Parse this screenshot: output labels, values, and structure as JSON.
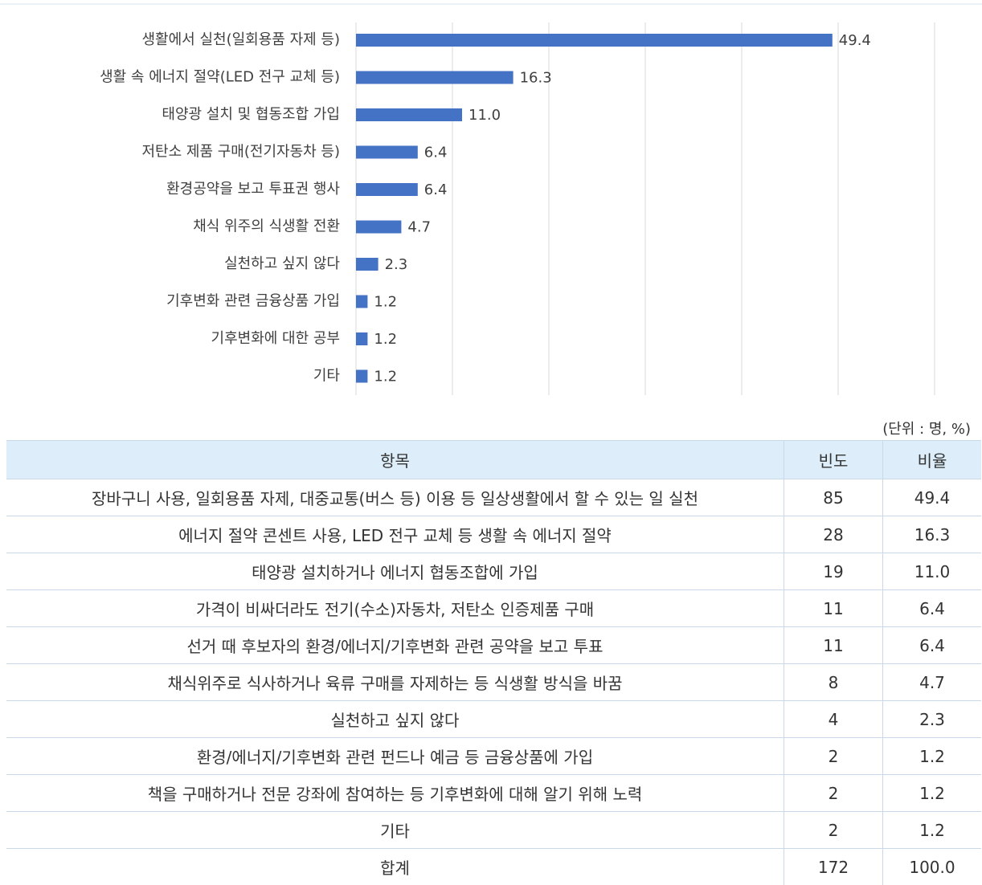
{
  "chart_data": {
    "type": "bar",
    "orientation": "horizontal",
    "categories": [
      "생활에서 실천(일회용품 자제 등)",
      "생활 속 에너지 절약(LED 전구 교체 등)",
      "태양광 설치 및 협동조합 가입",
      "저탄소 제품 구매(전기자동차 등)",
      "환경공약을 보고 투표권 행사",
      "채식 위주의 식생활 전환",
      "실천하고 싶지 않다",
      "기후변화 관련 금융상품 가입",
      "기후변화에 대한 공부",
      "기타"
    ],
    "values": [
      49.4,
      16.3,
      11.0,
      6.4,
      6.4,
      4.7,
      2.3,
      1.2,
      1.2,
      1.2
    ],
    "value_labels": [
      "49.4",
      "16.3",
      "11.0",
      "6.4",
      "6.4",
      "4.7",
      "2.3",
      "1.2",
      "1.2",
      "1.2"
    ],
    "color": "#4472c4",
    "xlim": [
      0,
      60
    ],
    "xticks": [
      0,
      10,
      20,
      30,
      40,
      50,
      60
    ],
    "grid": true
  },
  "table": {
    "unit_note": "(단위 : 명, %)",
    "header": [
      "항목",
      "빈도",
      "비율"
    ],
    "rows": [
      [
        "장바구니 사용, 일회용품 자제, 대중교통(버스 등) 이용 등 일상생활에서 할 수 있는 일 실천",
        "85",
        "49.4"
      ],
      [
        "에너지 절약 콘센트 사용, LED 전구 교체 등 생활 속 에너지 절약",
        "28",
        "16.3"
      ],
      [
        "태양광 설치하거나 에너지 협동조합에 가입",
        "19",
        "11.0"
      ],
      [
        "가격이 비싸더라도 전기(수소)자동차, 저탄소 인증제품 구매",
        "11",
        "6.4"
      ],
      [
        "선거 때 후보자의 환경/에너지/기후변화 관련 공약을 보고 투표",
        "11",
        "6.4"
      ],
      [
        "채식위주로 식사하거나 육류 구매를 자제하는 등 식생활 방식을 바꿈",
        "8",
        "4.7"
      ],
      [
        "실천하고 싶지 않다",
        "4",
        "2.3"
      ],
      [
        "환경/에너지/기후변화 관련 펀드나 예금 등 금융상품에 가입",
        "2",
        "1.2"
      ],
      [
        "책을 구매하거나 전문 강좌에 참여하는 등 기후변화에 대해 알기 위해 노력",
        "2",
        "1.2"
      ],
      [
        "기타",
        "2",
        "1.2"
      ],
      [
        "합계",
        "172",
        "100.0"
      ]
    ]
  }
}
